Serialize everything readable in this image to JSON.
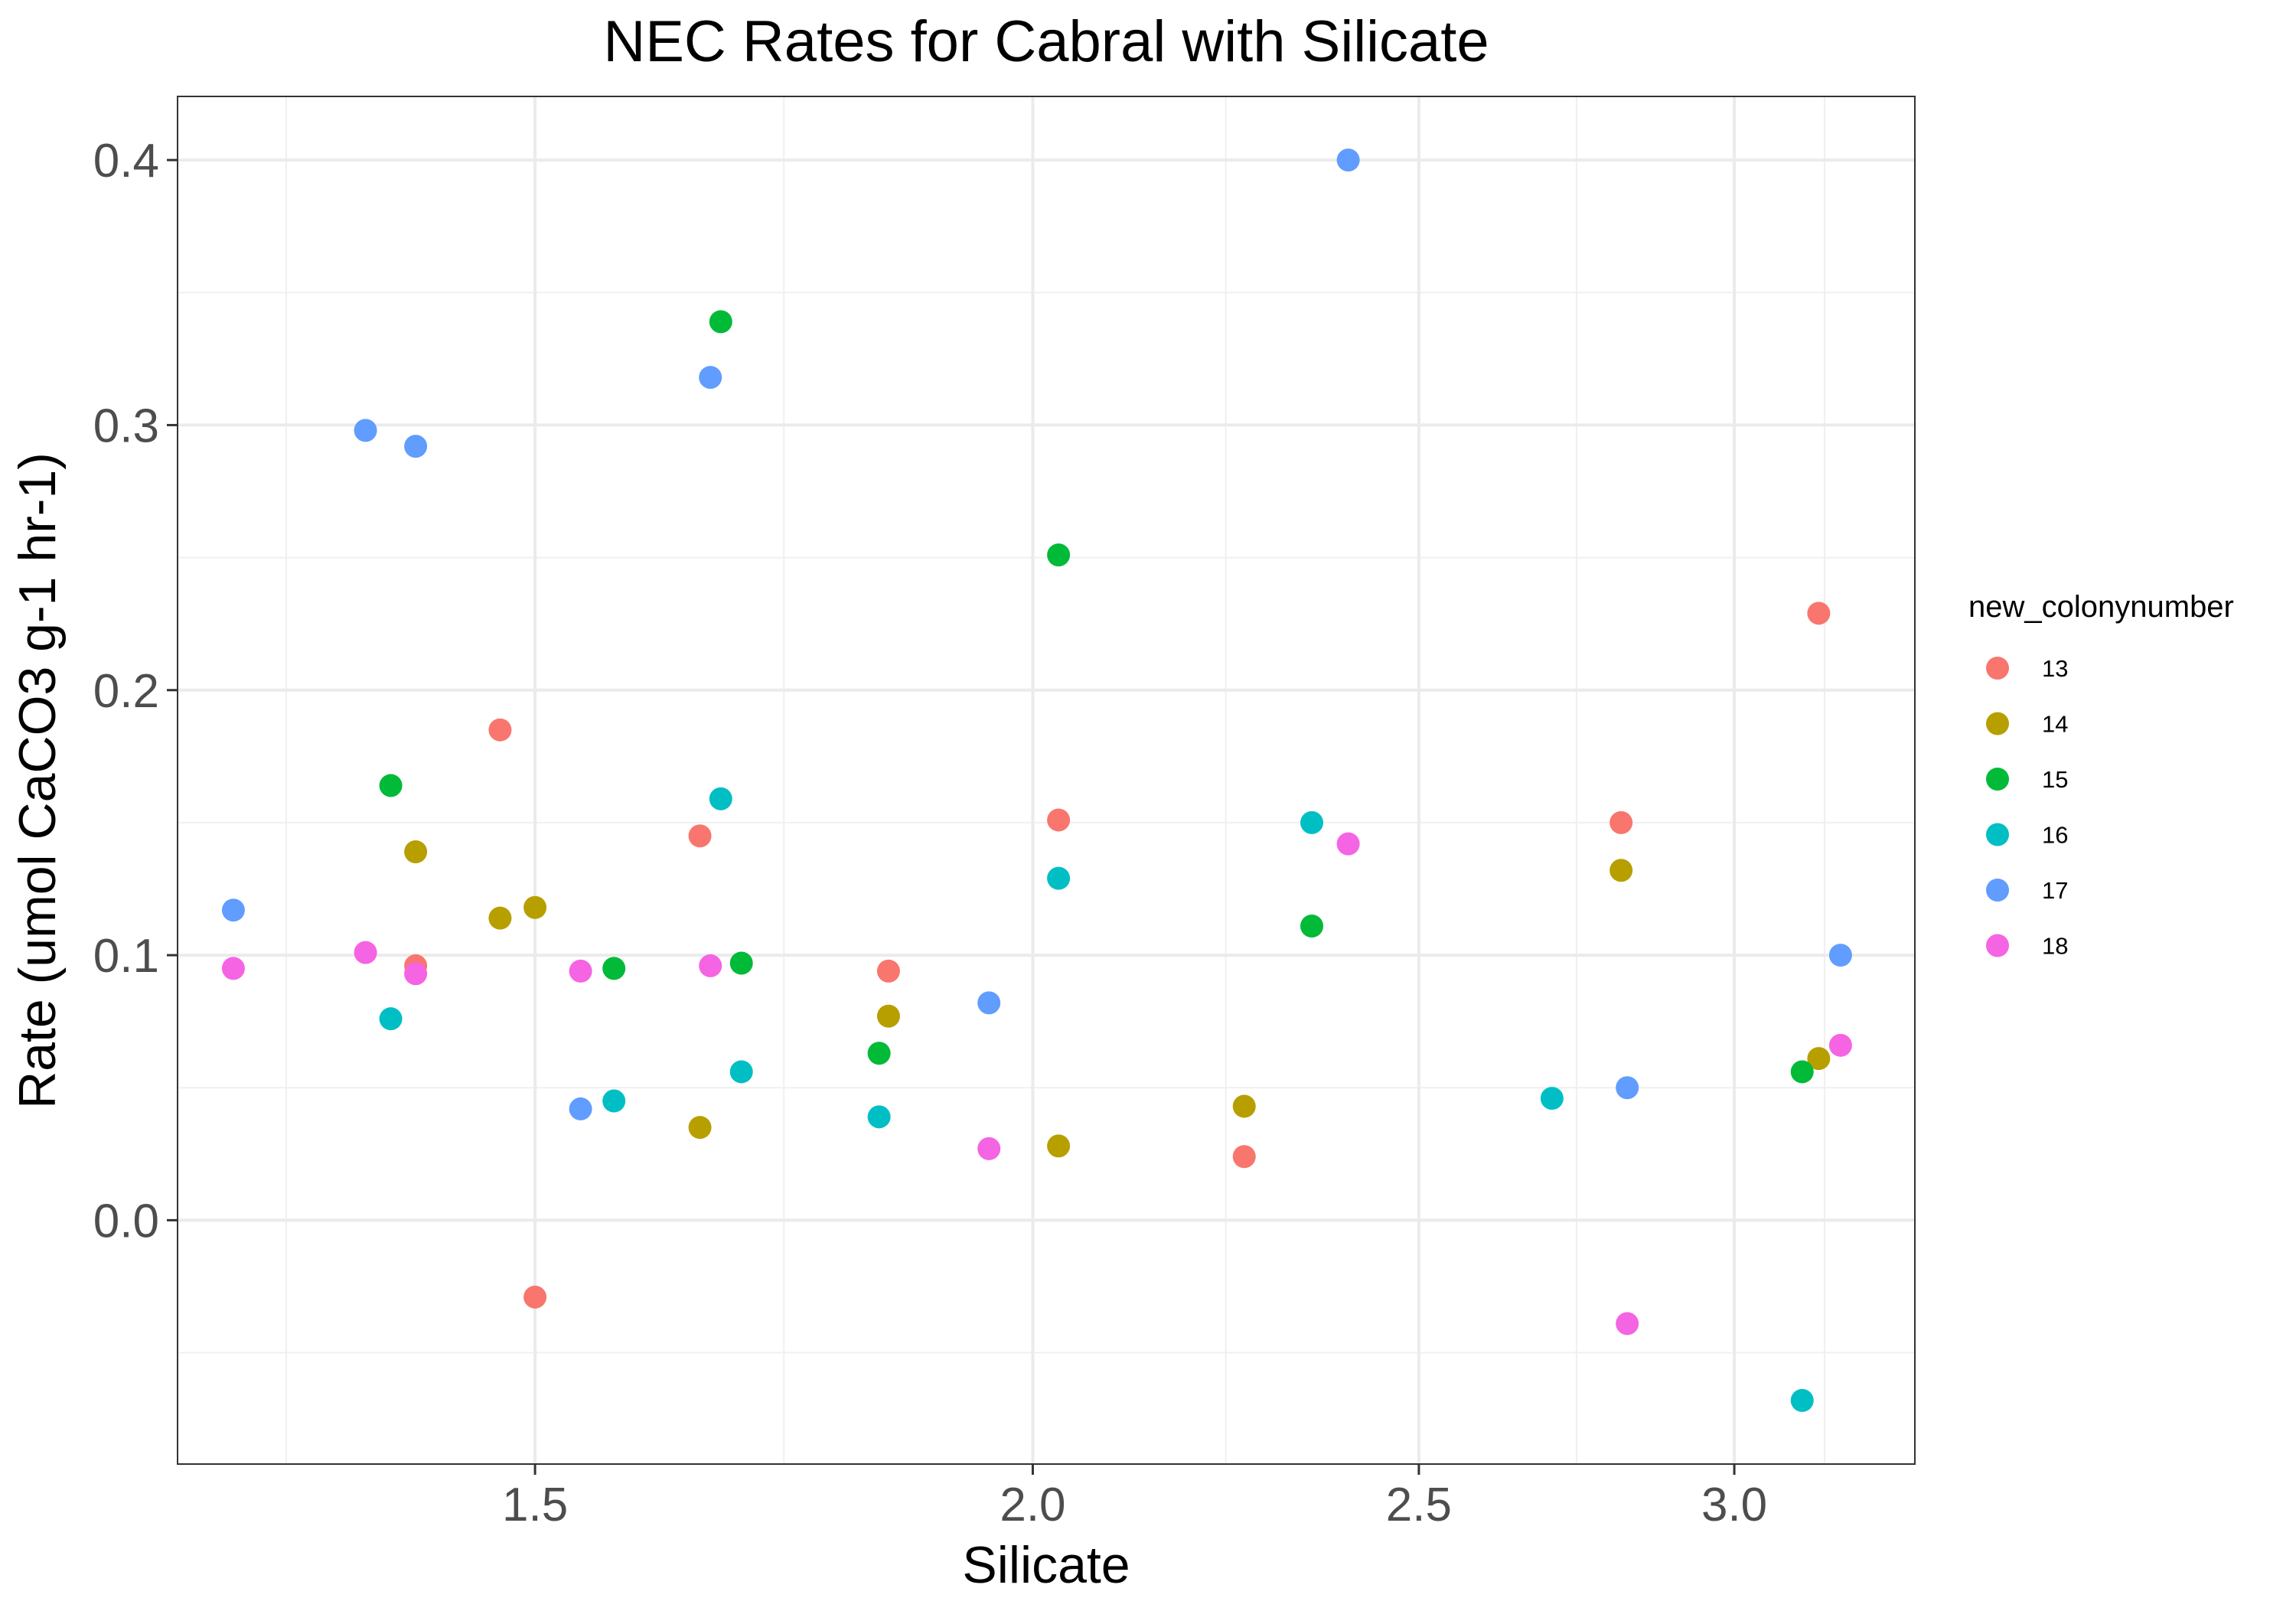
{
  "chart_data": {
    "type": "scatter",
    "title": "NEC Rates for Cabral with Silicate",
    "xlabel": "Silicate",
    "ylabel": "Rate (umol CaCO3 g-1 hr-1)",
    "x_scale": "log10",
    "xlim": [
      1.22,
      3.33
    ],
    "ylim": [
      -0.092,
      0.424
    ],
    "x_ticks": [
      {
        "value": 1.5,
        "label": "1.5"
      },
      {
        "value": 2.0,
        "label": "2.0"
      },
      {
        "value": 2.5,
        "label": "2.5"
      },
      {
        "value": 3.0,
        "label": "3.0"
      }
    ],
    "y_ticks": [
      {
        "value": 0.0,
        "label": "0.0"
      },
      {
        "value": 0.1,
        "label": "0.1"
      },
      {
        "value": 0.2,
        "label": "0.2"
      },
      {
        "value": 0.3,
        "label": "0.3"
      },
      {
        "value": 0.4,
        "label": "0.4"
      }
    ],
    "grid": true,
    "legend": {
      "title": "new_colonynumber",
      "position": "right"
    },
    "series": [
      {
        "name": "13",
        "color": "#F8766D",
        "points": [
          {
            "x": 1.4,
            "y": 0.096
          },
          {
            "x": 1.47,
            "y": 0.185
          },
          {
            "x": 1.5,
            "y": -0.029
          },
          {
            "x": 1.65,
            "y": 0.145
          },
          {
            "x": 1.84,
            "y": 0.094
          },
          {
            "x": 2.03,
            "y": 0.151
          },
          {
            "x": 2.26,
            "y": 0.024
          },
          {
            "x": 2.81,
            "y": 0.15
          },
          {
            "x": 3.15,
            "y": 0.229
          }
        ]
      },
      {
        "name": "14",
        "color": "#B79F00",
        "points": [
          {
            "x": 1.4,
            "y": 0.139
          },
          {
            "x": 1.47,
            "y": 0.114
          },
          {
            "x": 1.5,
            "y": 0.118
          },
          {
            "x": 1.65,
            "y": 0.035
          },
          {
            "x": 1.84,
            "y": 0.077
          },
          {
            "x": 2.03,
            "y": 0.028
          },
          {
            "x": 2.26,
            "y": 0.043
          },
          {
            "x": 2.81,
            "y": 0.132
          },
          {
            "x": 3.15,
            "y": 0.061
          }
        ]
      },
      {
        "name": "15",
        "color": "#00BA38",
        "points": [
          {
            "x": 1.38,
            "y": 0.164
          },
          {
            "x": 1.57,
            "y": 0.095
          },
          {
            "x": 1.67,
            "y": 0.339
          },
          {
            "x": 1.69,
            "y": 0.097
          },
          {
            "x": 1.83,
            "y": 0.063
          },
          {
            "x": 2.03,
            "y": 0.251
          },
          {
            "x": 2.35,
            "y": 0.111
          },
          {
            "x": 3.12,
            "y": 0.056
          }
        ]
      },
      {
        "name": "16",
        "color": "#00BFC4",
        "points": [
          {
            "x": 1.38,
            "y": 0.076
          },
          {
            "x": 1.57,
            "y": 0.045
          },
          {
            "x": 1.67,
            "y": 0.159
          },
          {
            "x": 1.69,
            "y": 0.056
          },
          {
            "x": 1.83,
            "y": 0.039
          },
          {
            "x": 2.03,
            "y": 0.129
          },
          {
            "x": 2.35,
            "y": 0.15
          },
          {
            "x": 2.7,
            "y": 0.046
          },
          {
            "x": 3.12,
            "y": -0.068
          }
        ]
      },
      {
        "name": "17",
        "color": "#619CFF",
        "points": [
          {
            "x": 1.26,
            "y": 0.117
          },
          {
            "x": 1.36,
            "y": 0.298
          },
          {
            "x": 1.4,
            "y": 0.292
          },
          {
            "x": 1.54,
            "y": 0.042
          },
          {
            "x": 1.66,
            "y": 0.318
          },
          {
            "x": 1.95,
            "y": 0.082
          },
          {
            "x": 2.4,
            "y": 0.4
          },
          {
            "x": 2.82,
            "y": 0.05
          },
          {
            "x": 3.19,
            "y": 0.1
          }
        ]
      },
      {
        "name": "18",
        "color": "#F564E3",
        "points": [
          {
            "x": 1.26,
            "y": 0.095
          },
          {
            "x": 1.36,
            "y": 0.101
          },
          {
            "x": 1.4,
            "y": 0.093
          },
          {
            "x": 1.54,
            "y": 0.094
          },
          {
            "x": 1.66,
            "y": 0.096
          },
          {
            "x": 1.95,
            "y": 0.027
          },
          {
            "x": 2.4,
            "y": 0.142
          },
          {
            "x": 2.82,
            "y": -0.039
          },
          {
            "x": 3.19,
            "y": 0.066
          }
        ]
      }
    ]
  }
}
